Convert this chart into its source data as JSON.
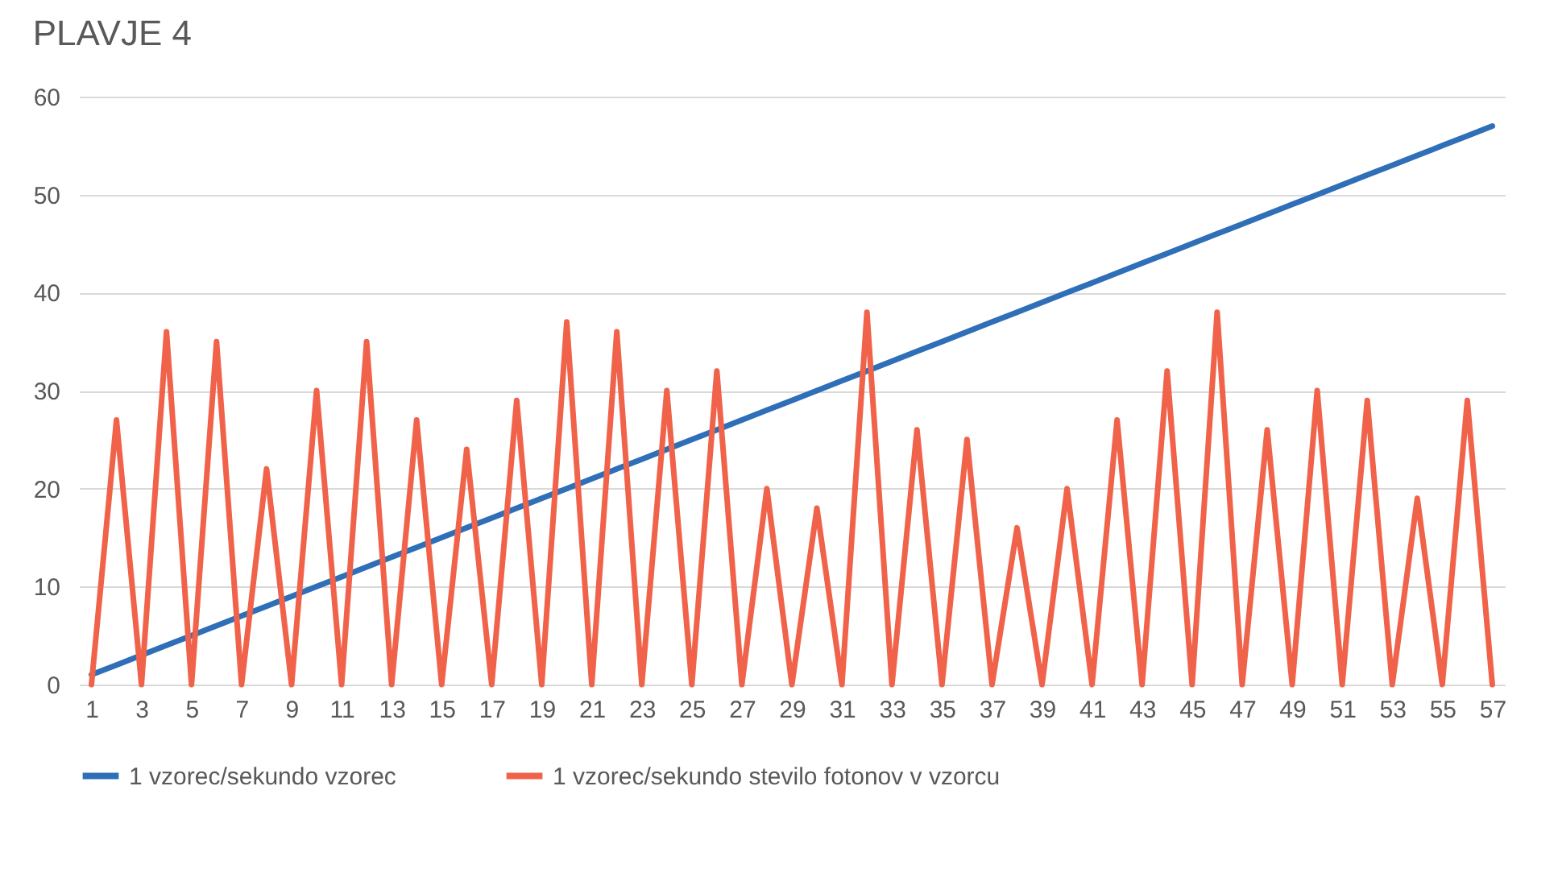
{
  "chart_data": {
    "type": "line",
    "title": "PLAVJE 4",
    "x": [
      1,
      2,
      3,
      4,
      5,
      6,
      7,
      8,
      9,
      10,
      11,
      12,
      13,
      14,
      15,
      16,
      17,
      18,
      19,
      20,
      21,
      22,
      23,
      24,
      25,
      26,
      27,
      28,
      29,
      30,
      31,
      32,
      33,
      34,
      35,
      36,
      37,
      38,
      39,
      40,
      41,
      42,
      43,
      44,
      45,
      46,
      47,
      48,
      49,
      50,
      51,
      52,
      53,
      54,
      55,
      56,
      57
    ],
    "series": [
      {
        "name": "1 vzorec/sekundo vzorec",
        "color": "#2e6fb7",
        "values": [
          1,
          2,
          3,
          4,
          5,
          6,
          7,
          8,
          9,
          10,
          11,
          12,
          13,
          14,
          15,
          16,
          17,
          18,
          19,
          20,
          21,
          22,
          23,
          24,
          25,
          26,
          27,
          28,
          29,
          30,
          31,
          32,
          33,
          34,
          35,
          36,
          37,
          38,
          39,
          40,
          41,
          42,
          43,
          44,
          45,
          46,
          47,
          48,
          49,
          50,
          51,
          52,
          53,
          54,
          55,
          56,
          57
        ]
      },
      {
        "name": "1 vzorec/sekundo stevilo fotonov v vzorcu",
        "color": "#f0634a",
        "values": [
          0,
          27,
          0,
          36,
          0,
          35,
          0,
          22,
          0,
          30,
          0,
          35,
          0,
          27,
          0,
          24,
          0,
          29,
          0,
          37,
          0,
          36,
          0,
          30,
          0,
          32,
          0,
          20,
          0,
          18,
          0,
          38,
          0,
          26,
          0,
          25,
          0,
          16,
          0,
          20,
          0,
          27,
          0,
          32,
          0,
          38,
          0,
          26,
          0,
          30,
          0,
          29,
          0,
          19,
          0,
          29,
          0
        ]
      }
    ],
    "xlim": [
      0.5,
      57.5
    ],
    "xticks": [
      1,
      3,
      5,
      7,
      9,
      11,
      13,
      15,
      17,
      19,
      21,
      23,
      25,
      27,
      29,
      31,
      33,
      35,
      37,
      39,
      41,
      43,
      45,
      47,
      49,
      51,
      53,
      55,
      57
    ],
    "ylim": [
      0,
      60
    ],
    "yticks": [
      0,
      10,
      20,
      30,
      40,
      50,
      60
    ],
    "grid": "y",
    "legend": "bottom",
    "line_style": "solid",
    "marker": "none"
  }
}
